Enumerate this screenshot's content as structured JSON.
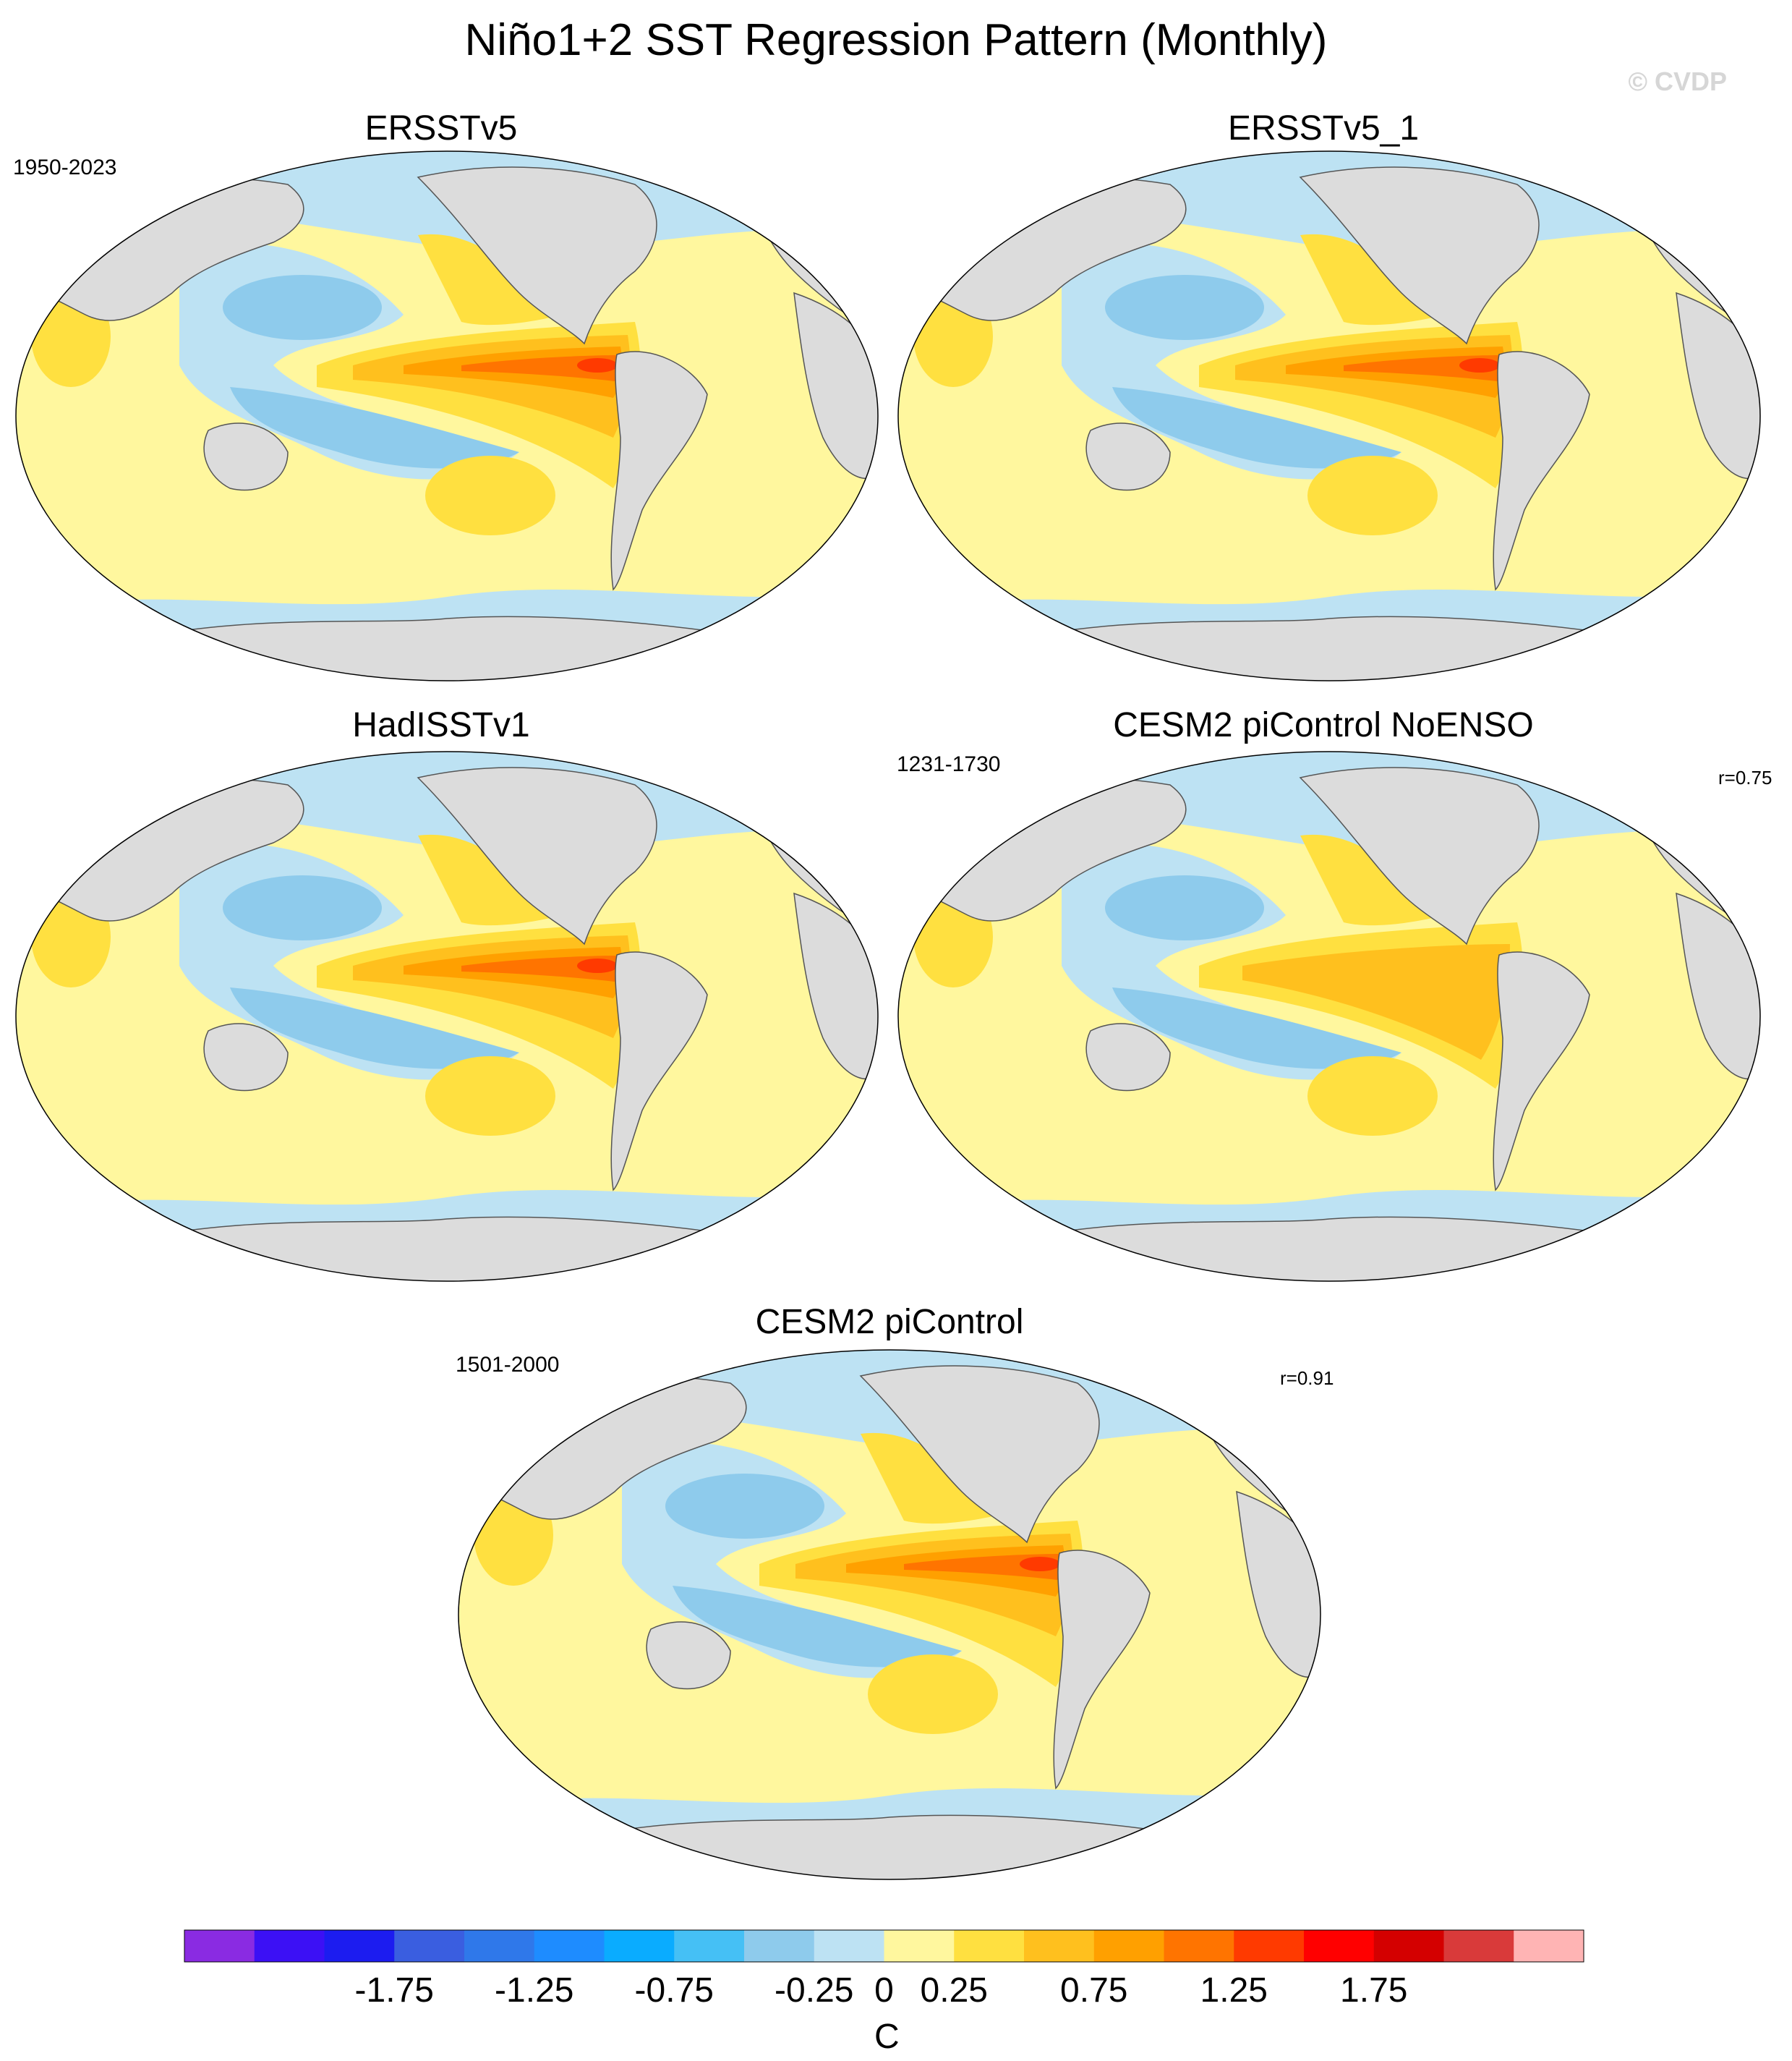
{
  "title": "Niño1+2 SST Regression Pattern (Monthly)",
  "copyright": "© CVDP",
  "panels": [
    {
      "title": "ERSSTv5",
      "period": "1950-2023",
      "corr": ""
    },
    {
      "title": "ERSSTv5_1",
      "period": "",
      "corr": ""
    },
    {
      "title": "HadISSTv1",
      "period": "",
      "corr": ""
    },
    {
      "title": "CESM2 piControl NoENSO",
      "period": "1231-1730",
      "corr": "r=0.75"
    },
    {
      "title": "CESM2 piControl",
      "period": "1501-2000",
      "corr": "r=0.91"
    }
  ],
  "colorbar": {
    "units": "C",
    "tick_labels": [
      "-1.75",
      "-1.25",
      "-0.75",
      "-0.25",
      "0",
      "0.25",
      "0.75",
      "1.25",
      "1.75"
    ],
    "levels": [
      -2.0,
      -1.75,
      -1.5,
      -1.25,
      -1.0,
      -0.75,
      -0.5,
      -0.25,
      0,
      0.25,
      0.5,
      0.75,
      1.0,
      1.25,
      1.5,
      1.75,
      2.0
    ],
    "colors": [
      "#8a2be2",
      "#3c10f5",
      "#1c1cf0",
      "#3a5ee0",
      "#2f78ea",
      "#1e8cff",
      "#0aacff",
      "#45c0f5",
      "#8ecbec",
      "#bde2f3",
      "#fff79e",
      "#ffe040",
      "#ffc01e",
      "#ffa000",
      "#ff7400",
      "#ff3a00",
      "#ff0000",
      "#d40000",
      "#d93a3a",
      "#ffb4b4"
    ]
  },
  "colors": {
    "land": "#dcdcdc",
    "coast": "#555555",
    "ocean_pos_weak": "#fff79e",
    "ocean_neg_weak": "#bde2f3",
    "ocean_neg": "#8ecbec",
    "pos_1": "#ffe040",
    "pos_2": "#ffc01e",
    "pos_3": "#ffa000",
    "pos_4": "#ff7400",
    "pos_5": "#ff3a00",
    "pos_6": "#d40000"
  }
}
